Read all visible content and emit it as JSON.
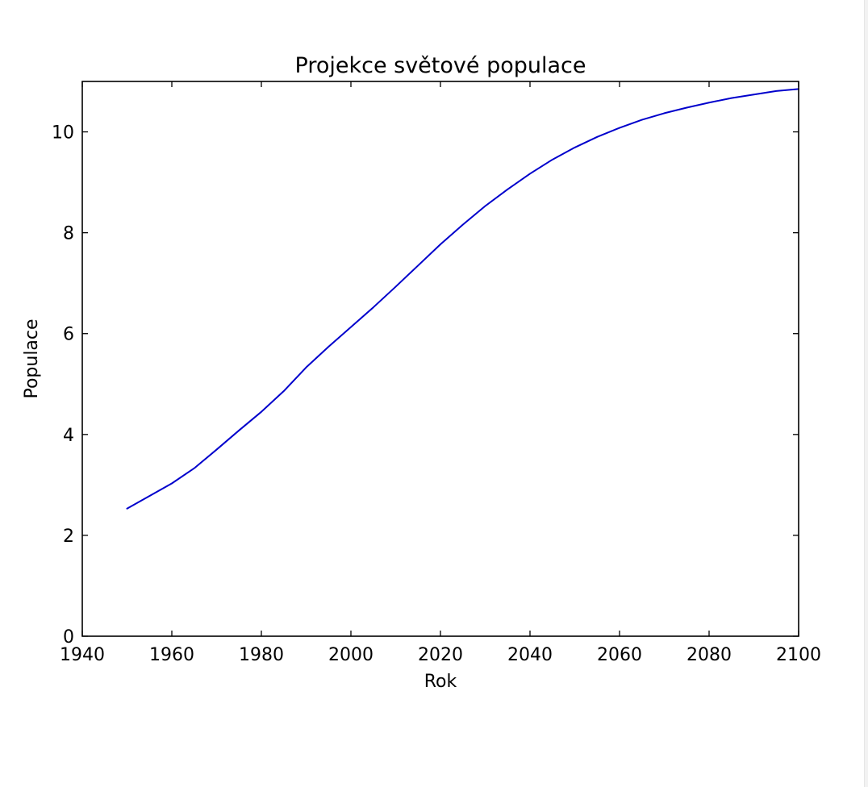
{
  "chart_data": {
    "type": "line",
    "title": "Projekce světové populace",
    "xlabel": "Rok",
    "ylabel": "Populace",
    "xlim": [
      1940,
      2100
    ],
    "ylim": [
      0,
      11
    ],
    "xticks": [
      1940,
      1960,
      1980,
      2000,
      2020,
      2040,
      2060,
      2080,
      2100
    ],
    "yticks": [
      0,
      2,
      4,
      6,
      8,
      10
    ],
    "grid": false,
    "line_color": "#0000cc",
    "series": [
      {
        "x": [
          1950,
          1955,
          1960,
          1965,
          1970,
          1975,
          1980,
          1985,
          1990,
          1995,
          2000,
          2005,
          2010,
          2015,
          2020,
          2025,
          2030,
          2035,
          2040,
          2045,
          2050,
          2055,
          2060,
          2065,
          2070,
          2075,
          2080,
          2085,
          2090,
          2095,
          2100
        ],
        "values": [
          2.53,
          2.78,
          3.03,
          3.33,
          3.7,
          4.08,
          4.45,
          4.86,
          5.33,
          5.74,
          6.13,
          6.52,
          6.93,
          7.35,
          7.77,
          8.16,
          8.53,
          8.86,
          9.17,
          9.45,
          9.69,
          9.9,
          10.08,
          10.24,
          10.37,
          10.48,
          10.58,
          10.67,
          10.74,
          10.81,
          10.85
        ]
      }
    ]
  }
}
